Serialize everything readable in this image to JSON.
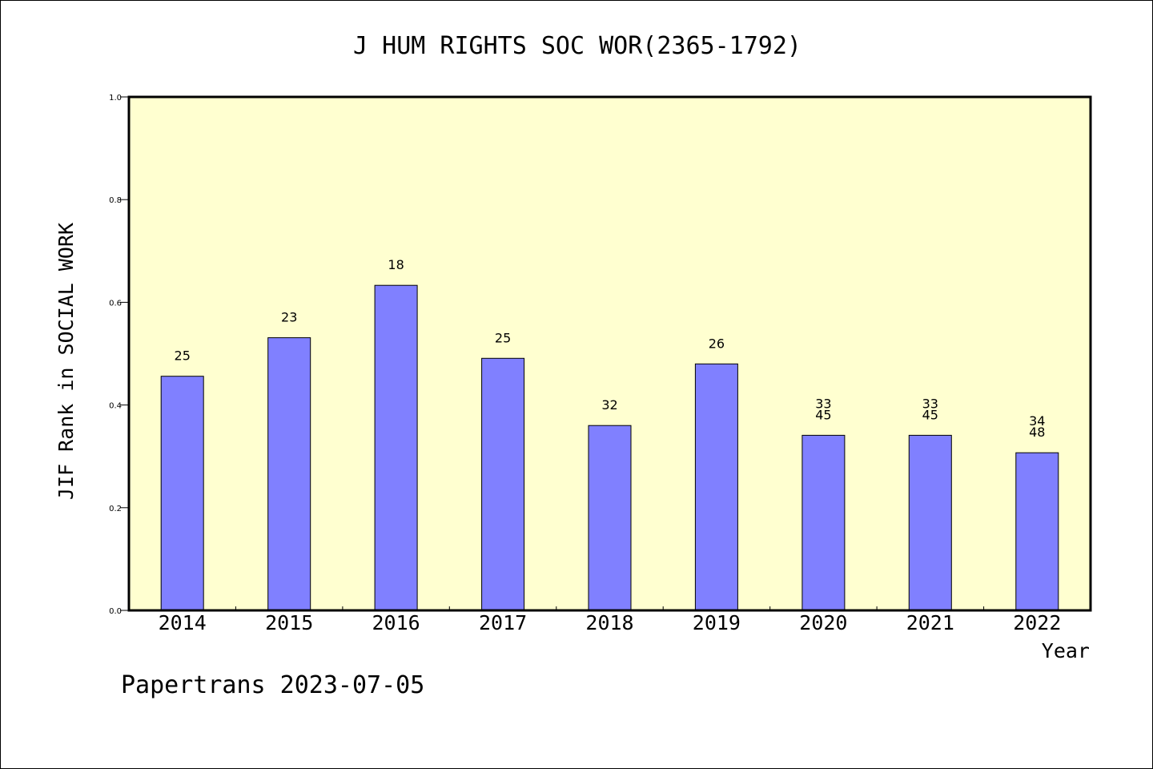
{
  "chart_data": {
    "type": "bar",
    "title": "J HUM RIGHTS SOC WOR(2365-1792)",
    "xlabel": "Year",
    "ylabel": "JIF Rank in SOCIAL WORK",
    "categories": [
      "2014",
      "2015",
      "2016",
      "2017",
      "2018",
      "2019",
      "2020",
      "2021",
      "2022"
    ],
    "values": [
      0.456,
      0.531,
      0.633,
      0.491,
      0.36,
      0.48,
      0.341,
      0.341,
      0.307
    ],
    "bar_labels": [
      [
        "25"
      ],
      [
        "23"
      ],
      [
        "18"
      ],
      [
        "25"
      ],
      [
        "32"
      ],
      [
        "26"
      ],
      [
        "33",
        "45"
      ],
      [
        "33",
        "45"
      ],
      [
        "34",
        "48"
      ]
    ],
    "ylim": [
      0.0,
      1.0
    ],
    "yticks": [
      "0.0",
      "0.2",
      "0.4",
      "0.6",
      "0.8",
      "1.0"
    ],
    "grid": false,
    "colors": {
      "bar_fill": "#8080ff",
      "plot_background": "#ffffd0",
      "axis": "#000000"
    }
  },
  "footer": {
    "text": "Papertrans 2023-07-05"
  }
}
